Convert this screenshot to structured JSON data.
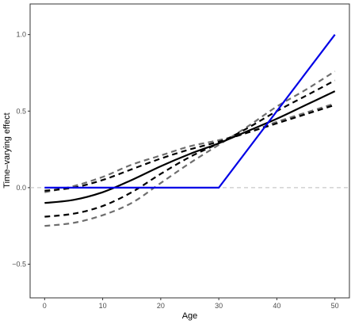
{
  "chart_data": {
    "type": "line",
    "xlabel": "Age",
    "ylabel": "Time–varying effect",
    "xlim": [
      -2.5,
      52.5
    ],
    "ylim": [
      -0.72,
      1.2
    ],
    "x_ticks": [
      0,
      10,
      20,
      30,
      40,
      50
    ],
    "x_tick_labels": [
      "0",
      "10",
      "20",
      "30",
      "40",
      "50"
    ],
    "y_ticks": [
      -0.5,
      0.0,
      0.5,
      1.0
    ],
    "y_tick_labels": [
      "−0.5",
      "0.0",
      "0.5",
      "1.0"
    ],
    "grid": false,
    "legend": "none",
    "reference_line": {
      "y": 0,
      "style": "dashed",
      "color": "#c8c8c8"
    },
    "series": [
      {
        "style": "solid",
        "color": "#0000e6",
        "x": [
          0,
          30,
          50
        ],
        "y": [
          0.0,
          0.0,
          1.0
        ]
      },
      {
        "style": "solid",
        "color": "#000000",
        "x": [
          0,
          5,
          10,
          15,
          20,
          25,
          30,
          35,
          40,
          45,
          50
        ],
        "y": [
          -0.1,
          -0.08,
          -0.03,
          0.05,
          0.14,
          0.22,
          0.29,
          0.37,
          0.45,
          0.54,
          0.63
        ]
      },
      {
        "style": "dashed",
        "color": "#000000",
        "x": [
          0,
          5,
          10,
          15,
          20,
          25,
          30,
          35,
          40,
          45,
          50
        ],
        "y": [
          -0.19,
          -0.17,
          -0.12,
          -0.03,
          0.09,
          0.2,
          0.29,
          0.39,
          0.5,
          0.6,
          0.7
        ]
      },
      {
        "style": "dashed",
        "color": "#000000",
        "x": [
          0,
          5,
          10,
          15,
          20,
          25,
          30,
          35,
          40,
          45,
          50
        ],
        "y": [
          -0.02,
          0.0,
          0.05,
          0.12,
          0.19,
          0.25,
          0.3,
          0.36,
          0.42,
          0.48,
          0.54
        ]
      },
      {
        "style": "dashed",
        "color": "#6e6e6e",
        "x": [
          0,
          5,
          10,
          15,
          20,
          25,
          30,
          35,
          40,
          45,
          50
        ],
        "y": [
          -0.25,
          -0.23,
          -0.18,
          -0.1,
          0.03,
          0.16,
          0.28,
          0.4,
          0.53,
          0.64,
          0.76
        ]
      },
      {
        "style": "dashed",
        "color": "#6e6e6e",
        "x": [
          0,
          5,
          10,
          15,
          20,
          25,
          30,
          35,
          40,
          45,
          50
        ],
        "y": [
          -0.03,
          0.01,
          0.07,
          0.15,
          0.21,
          0.27,
          0.31,
          0.36,
          0.43,
          0.49,
          0.55
        ]
      }
    ]
  }
}
